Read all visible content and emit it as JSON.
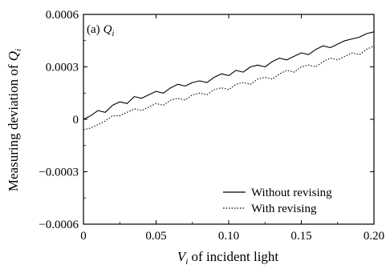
{
  "chart_data": {
    "type": "line",
    "panel_label": "(a)",
    "panel_symbol": "Q",
    "panel_symbol_sub": "i",
    "xlabel_var": "V",
    "xlabel_sub": "i",
    "xlabel_text": " of incident light",
    "ylabel_text": "Measuring deviation of ",
    "ylabel_var": "Q",
    "ylabel_sub": "i",
    "xlim": [
      0,
      0.2
    ],
    "ylim": [
      -0.0006,
      0.0006
    ],
    "xticks": [
      0,
      0.05,
      0.1,
      0.15,
      0.2
    ],
    "xtick_labels": [
      "0",
      "0.05",
      "0.10",
      "0.15",
      "0.20"
    ],
    "yticks": [
      -0.0006,
      -0.0003,
      0,
      0.0003,
      0.0006
    ],
    "ytick_labels": [
      "−0.0006",
      "−0.0003",
      "0",
      "0.0003",
      "0.0006"
    ],
    "grid": false,
    "legend_position": "bottom-right",
    "series": [
      {
        "name": "Without revising",
        "style": "solid",
        "color": "#000000",
        "x": [
          0,
          0.005,
          0.01,
          0.015,
          0.02,
          0.025,
          0.03,
          0.035,
          0.04,
          0.045,
          0.05,
          0.055,
          0.06,
          0.065,
          0.07,
          0.075,
          0.08,
          0.085,
          0.09,
          0.095,
          0.1,
          0.105,
          0.11,
          0.115,
          0.12,
          0.125,
          0.13,
          0.135,
          0.14,
          0.145,
          0.15,
          0.155,
          0.16,
          0.165,
          0.17,
          0.175,
          0.18,
          0.185,
          0.19,
          0.195,
          0.2
        ],
        "y": [
          0.0,
          2e-05,
          5e-05,
          4e-05,
          8e-05,
          0.0001,
          9e-05,
          0.00013,
          0.00012,
          0.00014,
          0.00016,
          0.00015,
          0.00018,
          0.0002,
          0.00019,
          0.00021,
          0.00022,
          0.00021,
          0.00024,
          0.00026,
          0.00025,
          0.00028,
          0.00027,
          0.0003,
          0.00031,
          0.0003,
          0.00033,
          0.00035,
          0.00034,
          0.00036,
          0.00038,
          0.00037,
          0.0004,
          0.00042,
          0.00041,
          0.00043,
          0.00045,
          0.00046,
          0.00047,
          0.00049,
          0.0005
        ]
      },
      {
        "name": "With revising",
        "style": "dotted",
        "color": "#000000",
        "x": [
          0,
          0.005,
          0.01,
          0.015,
          0.02,
          0.025,
          0.03,
          0.035,
          0.04,
          0.045,
          0.05,
          0.055,
          0.06,
          0.065,
          0.07,
          0.075,
          0.08,
          0.085,
          0.09,
          0.095,
          0.1,
          0.105,
          0.11,
          0.115,
          0.12,
          0.125,
          0.13,
          0.135,
          0.14,
          0.145,
          0.15,
          0.155,
          0.16,
          0.165,
          0.17,
          0.175,
          0.18,
          0.185,
          0.19,
          0.195,
          0.2
        ],
        "y": [
          -6e-05,
          -5e-05,
          -3e-05,
          -1e-05,
          2e-05,
          2e-05,
          4e-05,
          6e-05,
          5e-05,
          7e-05,
          9e-05,
          8e-05,
          0.00011,
          0.00012,
          0.00011,
          0.00014,
          0.00015,
          0.00014,
          0.00017,
          0.00018,
          0.00017,
          0.0002,
          0.00021,
          0.0002,
          0.00023,
          0.00024,
          0.00023,
          0.00026,
          0.00028,
          0.00027,
          0.0003,
          0.00031,
          0.0003,
          0.00033,
          0.00035,
          0.00034,
          0.00036,
          0.00038,
          0.00037,
          0.0004,
          0.00042
        ]
      }
    ]
  }
}
